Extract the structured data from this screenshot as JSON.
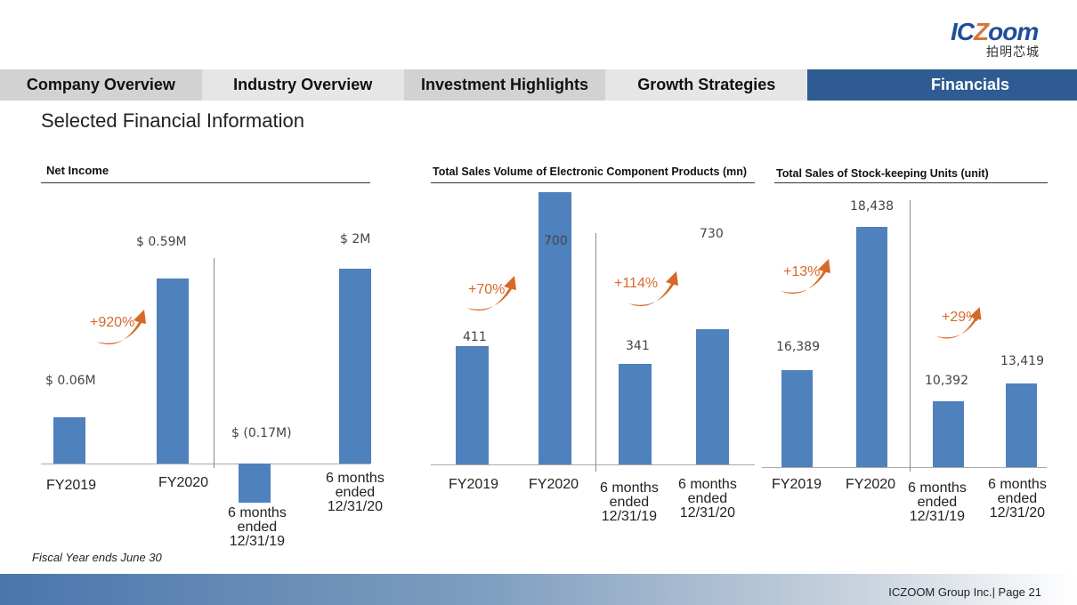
{
  "logo": {
    "text": "ICZoom",
    "subtitle": "拍明芯城"
  },
  "tabs": [
    "Company Overview",
    "Industry Overview",
    "Investment Highlights",
    "Growth Strategies",
    "Financials"
  ],
  "active_tab": "Financials",
  "page_title": "Selected Financial Information",
  "colors": {
    "bar": "#4f81bd",
    "growth": "#d7682a",
    "active_tab": "#2e5b91"
  },
  "chart_data": [
    {
      "type": "bar",
      "title": "Net Income",
      "unit": "USD millions",
      "categories": [
        "FY2019",
        "FY2020",
        "6 months ended 12/31/19",
        "6 months ended 12/31/20"
      ],
      "values": [
        0.06,
        0.59,
        -0.17,
        2
      ],
      "data_labels": [
        "$ 0.06M",
        "$ 0.59M",
        "$ (0.17M)",
        "$ 2M"
      ],
      "annotations": [
        "+920%"
      ]
    },
    {
      "type": "bar",
      "title": "Total Sales Volume of Electronic Component Products (mn)",
      "categories": [
        "FY2019",
        "FY2020",
        "6 months ended 12/31/19",
        "6 months ended 12/31/20"
      ],
      "values": [
        411,
        700,
        341,
        730
      ],
      "data_labels": [
        "411",
        "700",
        "341",
        "730"
      ],
      "annotations": [
        "+70%",
        "+114%"
      ]
    },
    {
      "type": "bar",
      "title": "Total Sales of Stock-keeping Units (unit)",
      "categories": [
        "FY2019",
        "FY2020",
        "6 months ended 12/31/19",
        "6 months ended 12/31/20"
      ],
      "values": [
        16389,
        18438,
        10392,
        13419
      ],
      "data_labels": [
        "16,389",
        "18,438",
        "10,392",
        "13,419"
      ],
      "annotations": [
        "+13%",
        "+29%"
      ]
    }
  ],
  "cat_lines": {
    "fy2019": "FY2019",
    "fy2020": "FY2020",
    "six1": "6 months",
    "six2": "ended",
    "d19": "12/31/19",
    "d20": "12/31/20"
  },
  "note": "Fiscal Year ends June 30",
  "footer": "ICZOOM Group Inc.| Page 21"
}
